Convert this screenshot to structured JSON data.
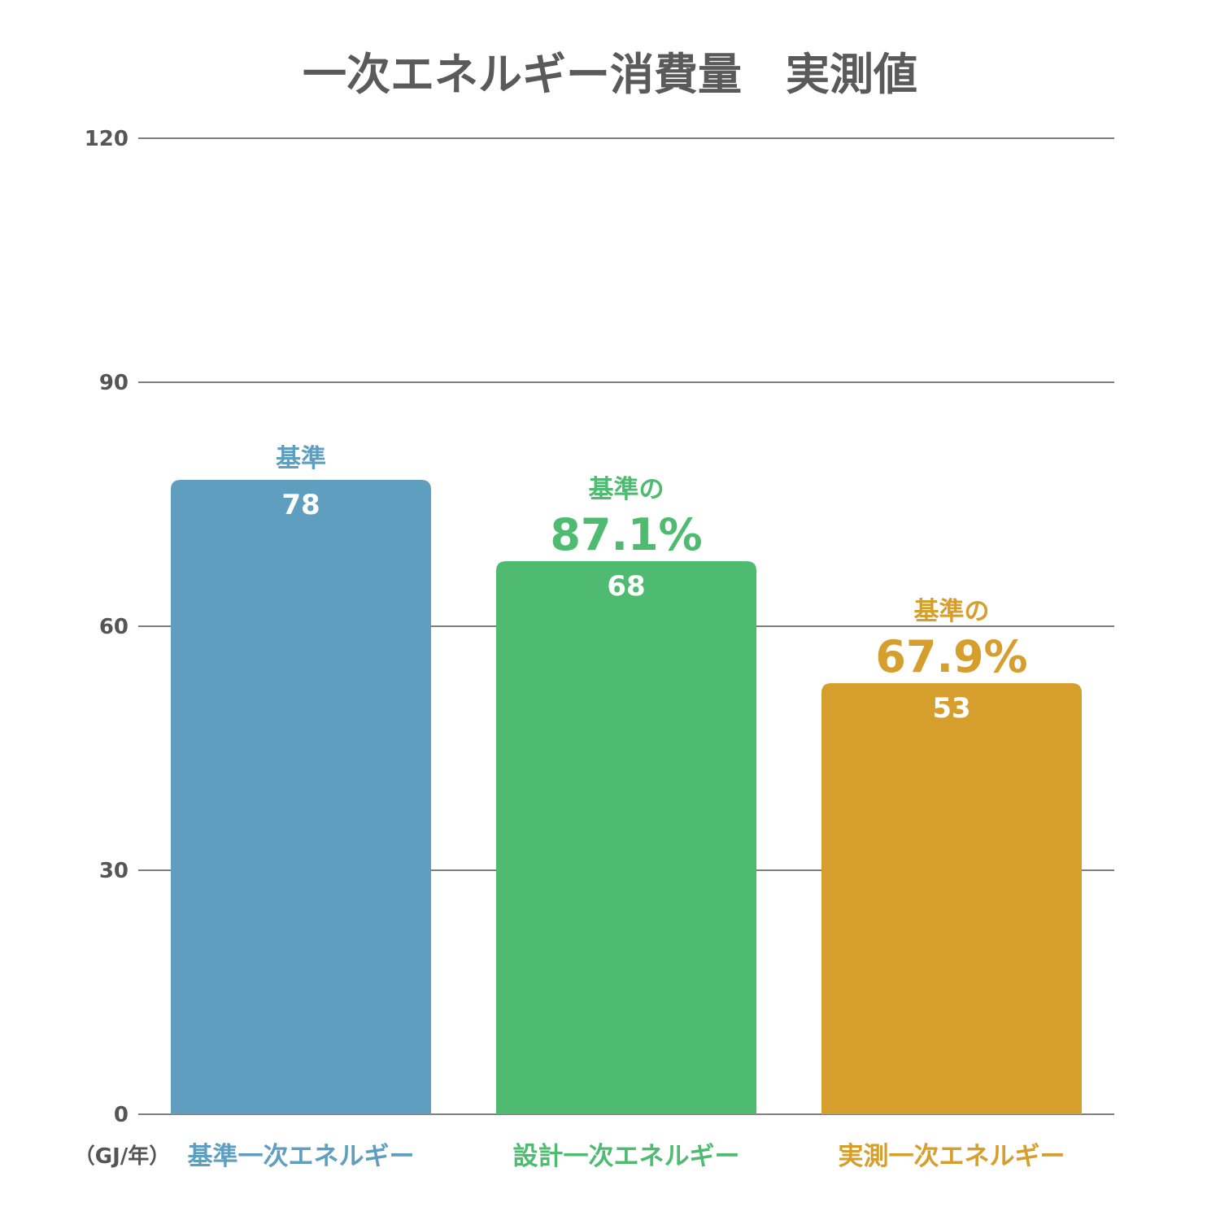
{
  "chart_data": {
    "type": "bar",
    "title": "一次エネルギー消費量　実測値",
    "unit_label": "（GJ/年）",
    "ylim": [
      0,
      120
    ],
    "yticks": [
      0,
      30,
      60,
      90,
      120
    ],
    "grid": true,
    "categories": [
      "基準一次エネルギー",
      "設計一次エネルギー",
      "実測一次エネルギー"
    ],
    "values": [
      78,
      68,
      53
    ],
    "colors": [
      "#609ebf",
      "#4fbb71",
      "#d69e2d"
    ],
    "annotations": [
      {
        "text": "基準",
        "percent": ""
      },
      {
        "text": "基準の",
        "percent": "87.1%"
      },
      {
        "text": "基準の",
        "percent": "67.9%"
      }
    ]
  }
}
